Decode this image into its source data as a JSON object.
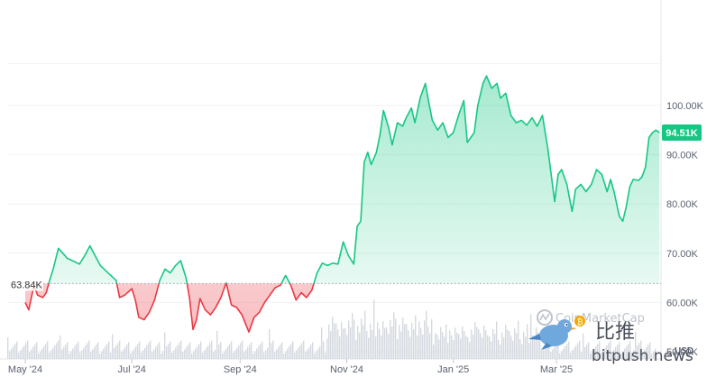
{
  "chart_data": {
    "type": "area",
    "currency": "USD",
    "baseline": 63840,
    "baseline_label": "63.84K",
    "current_label": "94.51K",
    "colors": {
      "up_line": "#16c784",
      "down_line": "#ea3943",
      "up_fill": "#16c784",
      "down_fill": "#ea3943",
      "current_badge": "#16c784",
      "grid": "#eff2f5",
      "volume": "#d5d9e0"
    },
    "ylim": [
      40000,
      108000
    ],
    "y_ticks": [
      {
        "value": 50000,
        "label": "50.00K"
      },
      {
        "value": 60000,
        "label": "60.00K"
      },
      {
        "value": 70000,
        "label": "70.00K"
      },
      {
        "value": 80000,
        "label": "80.00K"
      },
      {
        "value": 90000,
        "label": "90.00K"
      },
      {
        "value": 100000,
        "label": "100.00K"
      }
    ],
    "x_ticks": [
      {
        "date": "2024-05-01",
        "label": "May '24"
      },
      {
        "date": "2024-07-01",
        "label": "Jul '24"
      },
      {
        "date": "2024-09-01",
        "label": "Sep '24"
      },
      {
        "date": "2024-11-01",
        "label": "Nov '24"
      },
      {
        "date": "2025-01-01",
        "label": "Jan '25"
      },
      {
        "date": "2025-03-01",
        "label": "Mar '25"
      }
    ],
    "x_range": [
      "2024-05-01",
      "2025-04-15"
    ],
    "series": [
      {
        "values": [
          [
            "2024-05-01",
            60000
          ],
          [
            "2024-05-03",
            58500
          ],
          [
            "2024-05-06",
            63500
          ],
          [
            "2024-05-08",
            61500
          ],
          [
            "2024-05-11",
            61000
          ],
          [
            "2024-05-13",
            62000
          ],
          [
            "2024-05-15",
            64500
          ],
          [
            "2024-05-17",
            66800
          ],
          [
            "2024-05-20",
            71000
          ],
          [
            "2024-05-22",
            70200
          ],
          [
            "2024-05-25",
            69000
          ],
          [
            "2024-05-28",
            68500
          ],
          [
            "2024-06-01",
            67800
          ],
          [
            "2024-06-04",
            69500
          ],
          [
            "2024-06-07",
            71500
          ],
          [
            "2024-06-10",
            69500
          ],
          [
            "2024-06-13",
            67500
          ],
          [
            "2024-06-16",
            66500
          ],
          [
            "2024-06-19",
            65500
          ],
          [
            "2024-06-22",
            64500
          ],
          [
            "2024-06-24",
            61000
          ],
          [
            "2024-06-27",
            61500
          ],
          [
            "2024-07-01",
            62800
          ],
          [
            "2024-07-03",
            60500
          ],
          [
            "2024-07-05",
            57000
          ],
          [
            "2024-07-08",
            56500
          ],
          [
            "2024-07-11",
            58000
          ],
          [
            "2024-07-14",
            60500
          ],
          [
            "2024-07-17",
            64500
          ],
          [
            "2024-07-20",
            66800
          ],
          [
            "2024-07-23",
            66000
          ],
          [
            "2024-07-26",
            67500
          ],
          [
            "2024-07-29",
            68500
          ],
          [
            "2024-08-01",
            65000
          ],
          [
            "2024-08-03",
            61000
          ],
          [
            "2024-08-05",
            54500
          ],
          [
            "2024-08-07",
            56500
          ],
          [
            "2024-08-09",
            60800
          ],
          [
            "2024-08-12",
            58500
          ],
          [
            "2024-08-15",
            57500
          ],
          [
            "2024-08-18",
            59000
          ],
          [
            "2024-08-21",
            61000
          ],
          [
            "2024-08-24",
            64000
          ],
          [
            "2024-08-27",
            59500
          ],
          [
            "2024-08-30",
            59000
          ],
          [
            "2024-09-02",
            57500
          ],
          [
            "2024-09-06",
            54000
          ],
          [
            "2024-09-09",
            57000
          ],
          [
            "2024-09-12",
            58000
          ],
          [
            "2024-09-15",
            60000
          ],
          [
            "2024-09-18",
            61500
          ],
          [
            "2024-09-21",
            63000
          ],
          [
            "2024-09-24",
            63500
          ],
          [
            "2024-09-27",
            65500
          ],
          [
            "2024-09-30",
            63500
          ],
          [
            "2024-10-03",
            60500
          ],
          [
            "2024-10-06",
            62000
          ],
          [
            "2024-10-09",
            61000
          ],
          [
            "2024-10-12",
            62500
          ],
          [
            "2024-10-15",
            66000
          ],
          [
            "2024-10-18",
            68000
          ],
          [
            "2024-10-21",
            67500
          ],
          [
            "2024-10-24",
            68000
          ],
          [
            "2024-10-27",
            67800
          ],
          [
            "2024-10-30",
            72300
          ],
          [
            "2024-11-02",
            69500
          ],
          [
            "2024-11-05",
            67800
          ],
          [
            "2024-11-07",
            75500
          ],
          [
            "2024-11-09",
            76500
          ],
          [
            "2024-11-11",
            88500
          ],
          [
            "2024-11-13",
            90500
          ],
          [
            "2024-11-15",
            88000
          ],
          [
            "2024-11-18",
            90500
          ],
          [
            "2024-11-20",
            94000
          ],
          [
            "2024-11-22",
            99000
          ],
          [
            "2024-11-25",
            95500
          ],
          [
            "2024-11-27",
            92000
          ],
          [
            "2024-11-30",
            96500
          ],
          [
            "2024-12-03",
            95800
          ],
          [
            "2024-12-05",
            97500
          ],
          [
            "2024-12-08",
            99500
          ],
          [
            "2024-12-10",
            96500
          ],
          [
            "2024-12-13",
            101500
          ],
          [
            "2024-12-16",
            104500
          ],
          [
            "2024-12-18",
            100500
          ],
          [
            "2024-12-20",
            97000
          ],
          [
            "2024-12-23",
            95000
          ],
          [
            "2024-12-26",
            96500
          ],
          [
            "2024-12-29",
            93500
          ],
          [
            "2025-01-01",
            94500
          ],
          [
            "2025-01-04",
            98000
          ],
          [
            "2025-01-07",
            101000
          ],
          [
            "2025-01-09",
            92500
          ],
          [
            "2025-01-13",
            94500
          ],
          [
            "2025-01-15",
            100000
          ],
          [
            "2025-01-18",
            104500
          ],
          [
            "2025-01-20",
            106000
          ],
          [
            "2025-01-23",
            103500
          ],
          [
            "2025-01-26",
            104500
          ],
          [
            "2025-01-28",
            101500
          ],
          [
            "2025-01-31",
            102500
          ],
          [
            "2025-02-03",
            98000
          ],
          [
            "2025-02-06",
            96500
          ],
          [
            "2025-02-09",
            97000
          ],
          [
            "2025-02-12",
            96000
          ],
          [
            "2025-02-15",
            97500
          ],
          [
            "2025-02-18",
            95800
          ],
          [
            "2025-02-21",
            98000
          ],
          [
            "2025-02-24",
            91500
          ],
          [
            "2025-02-26",
            86000
          ],
          [
            "2025-02-28",
            80500
          ],
          [
            "2025-03-02",
            86000
          ],
          [
            "2025-03-04",
            87000
          ],
          [
            "2025-03-07",
            84000
          ],
          [
            "2025-03-10",
            78500
          ],
          [
            "2025-03-12",
            83000
          ],
          [
            "2025-03-15",
            84000
          ],
          [
            "2025-03-18",
            82500
          ],
          [
            "2025-03-21",
            84000
          ],
          [
            "2025-03-24",
            87000
          ],
          [
            "2025-03-27",
            86000
          ],
          [
            "2025-03-30",
            82500
          ],
          [
            "2025-04-01",
            85000
          ],
          [
            "2025-04-03",
            82500
          ],
          [
            "2025-04-06",
            77500
          ],
          [
            "2025-04-08",
            76500
          ],
          [
            "2025-04-10",
            79500
          ],
          [
            "2025-04-12",
            83500
          ],
          [
            "2025-04-14",
            85000
          ],
          [
            "2025-04-17",
            84800
          ],
          [
            "2025-04-19",
            85500
          ],
          [
            "2025-04-21",
            87500
          ],
          [
            "2025-04-23",
            93500
          ],
          [
            "2025-04-25",
            94500
          ],
          [
            "2025-04-27",
            95000
          ],
          [
            "2025-04-29",
            94510
          ]
        ]
      }
    ]
  },
  "watermark": {
    "brand_text": "CoinMarketCap",
    "cn_text": "比推",
    "domain_text": "bitpush.news"
  }
}
